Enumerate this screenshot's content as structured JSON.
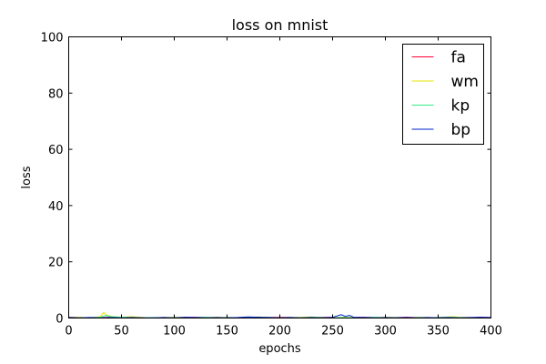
{
  "chart_data": {
    "type": "line",
    "title": "loss on mnist",
    "xlabel": "epochs",
    "ylabel": "loss",
    "xlim": [
      0,
      400
    ],
    "ylim": [
      0,
      100
    ],
    "xticks": [
      0,
      50,
      100,
      150,
      200,
      250,
      300,
      350,
      400
    ],
    "yticks": [
      0,
      20,
      40,
      60,
      80,
      100
    ],
    "grid": false,
    "legend_position": "top-right",
    "series": [
      {
        "name": "fa",
        "color": "#ff0033",
        "x": [
          0,
          10,
          20,
          30,
          40,
          50,
          60,
          70,
          80,
          90,
          100,
          110,
          120,
          130,
          140,
          150,
          160,
          170,
          180,
          190,
          200,
          210,
          220,
          230,
          240,
          250,
          260,
          270,
          280,
          290,
          300,
          310,
          320,
          330,
          340,
          350,
          360,
          370,
          380,
          390,
          400
        ],
        "y": [
          0.3,
          0.2,
          0.1,
          0.2,
          0.3,
          0.2,
          0.3,
          0.2,
          0.1,
          0.2,
          0.1,
          0.2,
          0.3,
          0.2,
          0.1,
          0.2,
          0.1,
          0.2,
          0.3,
          0.2,
          0.3,
          0.2,
          0.1,
          0.2,
          0.3,
          0.2,
          0.1,
          0.2,
          0.3,
          0.2,
          0.1,
          0.2,
          0.3,
          0.2,
          0.1,
          0.2,
          0.3,
          0.2,
          0.1,
          0.3,
          0.2
        ]
      },
      {
        "name": "wm",
        "color": "#e6e600",
        "x": [
          0,
          10,
          20,
          25,
          30,
          33,
          36,
          40,
          45,
          50,
          60,
          70,
          80,
          90,
          100,
          110,
          120,
          130,
          140,
          150,
          160,
          170,
          180,
          190,
          200,
          210,
          220,
          230,
          240,
          250,
          260,
          270,
          280,
          290,
          300,
          310,
          320,
          330,
          340,
          350,
          360,
          365,
          370,
          380,
          390,
          400
        ],
        "y": [
          0.2,
          0.3,
          0.1,
          0.3,
          0.5,
          2.0,
          1.0,
          0.6,
          0.4,
          0.3,
          0.5,
          0.2,
          0.1,
          0.2,
          0.3,
          0.2,
          0.1,
          0.2,
          0.3,
          0.2,
          0.1,
          0.2,
          0.4,
          0.2,
          0.1,
          0.2,
          0.3,
          0.4,
          0.2,
          0.1,
          0.3,
          0.2,
          0.1,
          0.2,
          0.3,
          0.2,
          0.1,
          0.3,
          0.2,
          0.1,
          0.4,
          0.5,
          0.3,
          0.2,
          0.1,
          0.2
        ]
      },
      {
        "name": "kp",
        "color": "#33ee88",
        "x": [
          0,
          10,
          20,
          30,
          35,
          40,
          50,
          60,
          70,
          80,
          90,
          100,
          110,
          120,
          130,
          140,
          150,
          160,
          170,
          180,
          190,
          200,
          210,
          220,
          230,
          240,
          250,
          260,
          270,
          280,
          290,
          300,
          310,
          320,
          330,
          340,
          350,
          360,
          370,
          380,
          390,
          400
        ],
        "y": [
          0.2,
          0.1,
          0.2,
          0.3,
          0.9,
          0.5,
          0.3,
          0.2,
          0.1,
          0.2,
          0.1,
          0.2,
          0.1,
          0.2,
          0.3,
          0.1,
          0.2,
          0.1,
          0.2,
          0.3,
          0.2,
          0.1,
          0.2,
          0.1,
          0.3,
          0.2,
          0.1,
          0.2,
          0.1,
          0.2,
          0.3,
          0.1,
          0.2,
          0.1,
          0.2,
          0.1,
          0.2,
          0.3,
          0.2,
          0.1,
          0.2,
          0.1
        ]
      },
      {
        "name": "bp",
        "color": "#0022cc",
        "x": [
          0,
          10,
          20,
          30,
          40,
          50,
          60,
          70,
          80,
          90,
          100,
          110,
          120,
          130,
          140,
          150,
          160,
          170,
          180,
          190,
          200,
          210,
          220,
          230,
          240,
          250,
          255,
          258,
          262,
          266,
          270,
          280,
          290,
          300,
          310,
          320,
          330,
          340,
          350,
          360,
          370,
          380,
          390,
          400
        ],
        "y": [
          0.2,
          0.1,
          0.2,
          0.1,
          0.2,
          0.1,
          0.2,
          0.1,
          0.1,
          0.2,
          0.1,
          0.3,
          0.2,
          0.1,
          0.2,
          0.1,
          0.2,
          0.4,
          0.3,
          0.2,
          0.1,
          0.2,
          0.1,
          0.2,
          0.1,
          0.3,
          0.8,
          1.2,
          0.6,
          0.9,
          0.3,
          0.2,
          0.1,
          0.2,
          0.1,
          0.2,
          0.1,
          0.2,
          0.1,
          0.2,
          0.1,
          0.2,
          0.3,
          0.2
        ]
      }
    ]
  }
}
